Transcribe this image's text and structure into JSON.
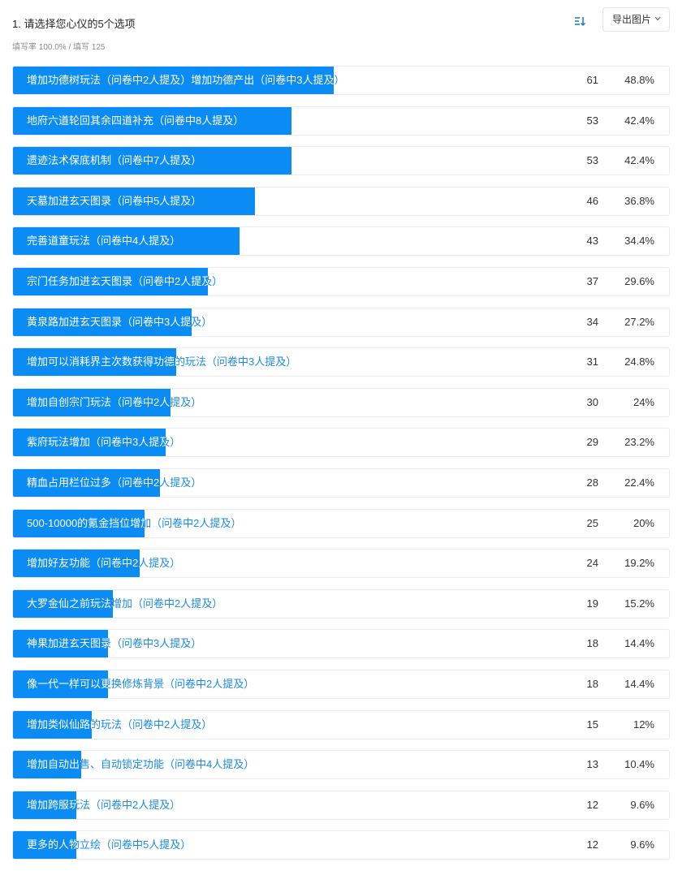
{
  "question": {
    "title": "1. 请选择您心仪的5个选项",
    "meta": "填写率 100.0% / 填写 125"
  },
  "toolbar": {
    "sort_icon": "sort-icon",
    "export_label": "导出图片",
    "export_icon": "chevron-down-icon"
  },
  "colors": {
    "bar": "#0b8cf5",
    "label_outside": "#1a8ae6",
    "label_inside": "#ffffff"
  },
  "chart_data": {
    "type": "bar",
    "orientation": "horizontal",
    "xlim": [
      0,
      100
    ],
    "categories": [
      "增加功德树玩法（问卷中2人提及）增加功德产出（问卷中3人提及）",
      "地府六道轮回其余四道补充（问卷中8人提及）",
      "遗迹法术保底机制（问卷中7人提及）",
      "天墓加进玄天图录（问卷中5人提及）",
      "完善道童玩法（问卷中4人提及）",
      "宗门任务加进玄天图录（问卷中2人提及）",
      "黄泉路加进玄天图录（问卷中3人提及）",
      "增加可以消耗界主次数获得功德的玩法（问卷中3人提及）",
      "增加自创宗门玩法（问卷中2人提及）",
      "紫府玩法增加（问卷中3人提及）",
      "精血占用栏位过多（问卷中2人提及）",
      "500-10000的氪金挡位增加（问卷中2人提及）",
      "增加好友功能（问卷中2人提及）",
      "大罗金仙之前玩法增加（问卷中2人提及）",
      "神果加进玄天图录（问卷中3人提及）",
      "像一代一样可以更换修炼背景（问卷中2人提及）",
      "增加类似仙路的玩法（问卷中2人提及）",
      "增加自动出售、自动锁定功能（问卷中4人提及）",
      "增加跨服玩法（问卷中2人提及）",
      "更多的人物立绘（问卷中5人提及）"
    ],
    "counts": [
      61,
      53,
      53,
      46,
      43,
      37,
      34,
      31,
      30,
      29,
      28,
      25,
      24,
      19,
      18,
      18,
      15,
      13,
      12,
      12
    ],
    "values": [
      48.8,
      42.4,
      42.4,
      36.8,
      34.4,
      29.6,
      27.2,
      24.8,
      24,
      23.2,
      22.4,
      20,
      19.2,
      15.2,
      14.4,
      14.4,
      12,
      10.4,
      9.6,
      9.6
    ],
    "percent_labels": [
      "48.8%",
      "42.4%",
      "42.4%",
      "36.8%",
      "34.4%",
      "29.6%",
      "27.2%",
      "24.8%",
      "24%",
      "23.2%",
      "22.4%",
      "20%",
      "19.2%",
      "15.2%",
      "14.4%",
      "14.4%",
      "12%",
      "10.4%",
      "9.6%",
      "9.6%"
    ]
  }
}
